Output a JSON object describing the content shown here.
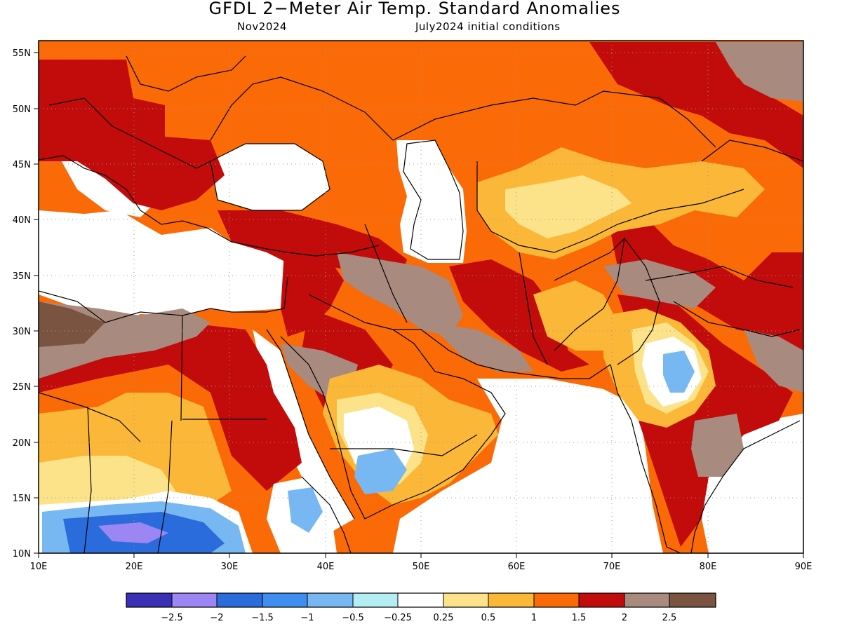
{
  "title": "GFDL 2−Meter Air Temp. Standard Anomalies",
  "valid_month": "Nov2024",
  "init_conditions": "July2024 initial conditions",
  "map": {
    "lon_range": [
      10,
      90
    ],
    "lat_range": [
      10,
      56
    ],
    "lon_ticks": [
      "10E",
      "20E",
      "30E",
      "40E",
      "50E",
      "60E",
      "70E",
      "80E",
      "90E"
    ],
    "lat_ticks": [
      "55N",
      "50N",
      "45N",
      "40N",
      "35N",
      "30N",
      "25N",
      "20N",
      "15N",
      "10N"
    ]
  },
  "colorbar": {
    "colors": [
      "#3a2fb5",
      "#9c86f4",
      "#2a6cdc",
      "#3f8ff0",
      "#78b8f2",
      "#b4eef4",
      "#ffffff",
      "#fce38a",
      "#fbb838",
      "#fa6a06",
      "#c20b0b",
      "#a98a7e",
      "#7a5440"
    ],
    "labels": [
      "−2.5",
      "−2",
      "−1.5",
      "−1",
      "−0.5",
      "−0.25",
      "0.25",
      "0.5",
      "1",
      "1.5",
      "2",
      "2.5"
    ]
  },
  "colors": {
    "strong_warm": "#c20b0b",
    "warm": "#fa6a06",
    "moderate": "#fbb838",
    "slight": "#fce38a",
    "very_strong": "#a98a7e",
    "extreme": "#7a5440",
    "cool": "#78b8f2",
    "cold": "#2a6cdc"
  }
}
